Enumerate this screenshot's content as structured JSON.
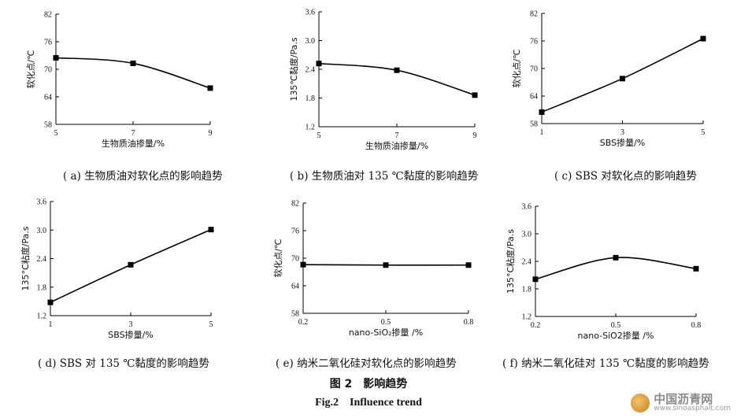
{
  "figure": {
    "title_cn": "图 2　影响趋势",
    "title_en": "Fig.2　Influence trend"
  },
  "watermark": {
    "name": "中国沥青网",
    "url": "www.sinoasphalt.com"
  },
  "chart_data": [
    {
      "type": "line",
      "caption": "( a) 生物质油对软化点的影响趋势",
      "xlabel": "生物质油掺量/%",
      "ylabel": "软化点/℃",
      "xlim": [
        5,
        9
      ],
      "ylim": [
        58,
        82
      ],
      "xticks": [
        "5",
        "7",
        "9"
      ],
      "yticks": [
        "58",
        "64",
        "70",
        "76",
        "82"
      ],
      "x": [
        5,
        7,
        9
      ],
      "values": [
        72.5,
        71.3,
        65.9
      ]
    },
    {
      "type": "line",
      "caption": "( b) 生物质油对 135 ℃黏度的影响趋势",
      "xlabel": "生物质油掺量/%",
      "ylabel": "135℃黏度/Pa.s",
      "xlim": [
        5,
        9
      ],
      "ylim": [
        1.2,
        3.6
      ],
      "xticks": [
        "5",
        "7",
        "9"
      ],
      "yticks": [
        "1.2",
        "1.8",
        "2.4",
        "3.0",
        "3.6"
      ],
      "x": [
        5,
        7,
        9
      ],
      "values": [
        2.52,
        2.38,
        1.86
      ]
    },
    {
      "type": "line",
      "caption": "( c) SBS 对软化点的影响趋势",
      "xlabel": "SBS掺量/%",
      "ylabel": "软化点/℃",
      "xlim": [
        1,
        5
      ],
      "ylim": [
        58,
        82
      ],
      "xticks": [
        "1",
        "3",
        "5"
      ],
      "yticks": [
        "58",
        "64",
        "70",
        "76",
        "82"
      ],
      "x": [
        1,
        3,
        5
      ],
      "values": [
        60.5,
        67.8,
        76.5
      ]
    },
    {
      "type": "line",
      "caption": "( d) SBS 对 135 ℃黏度的影响趋势",
      "xlabel": "SBS掺量/%",
      "ylabel": "135°C粘度/Pa.s",
      "xlim": [
        1,
        5
      ],
      "ylim": [
        1.2,
        3.6
      ],
      "xticks": [
        "1",
        "3",
        "5"
      ],
      "yticks": [
        "1.2",
        "1.8",
        "2.4",
        "3.0",
        "3.6"
      ],
      "x": [
        1,
        3,
        5
      ],
      "values": [
        1.48,
        2.27,
        3.01
      ]
    },
    {
      "type": "line",
      "caption": "( e) 纳米二氧化硅对软化点的影响趋势",
      "xlabel": "nano-SiO₂掺量 /%",
      "ylabel": "软化点/℃",
      "xlim": [
        0.2,
        0.8
      ],
      "ylim": [
        58,
        82
      ],
      "xticks": [
        "0.2",
        "0.5",
        "0.8"
      ],
      "yticks": [
        "58",
        "64",
        "70",
        "76",
        "82"
      ],
      "x": [
        0.2,
        0.5,
        0.8
      ],
      "values": [
        68.6,
        68.5,
        68.5
      ]
    },
    {
      "type": "line",
      "caption": "( f) 纳米二氧化硅对 135 ℃黏度的影响趋势",
      "xlabel": "nano-SiO2掺量 /%",
      "ylabel": "135°C粘度/Pa.s",
      "xlim": [
        0.2,
        0.8
      ],
      "ylim": [
        1.2,
        3.6
      ],
      "xticks": [
        "0.2",
        "0.5",
        "0.8"
      ],
      "yticks": [
        "1.2",
        "1.8",
        "2.4",
        "3.0",
        "3.6"
      ],
      "x": [
        0.2,
        0.5,
        0.8
      ],
      "values": [
        2.01,
        2.48,
        2.24
      ]
    }
  ]
}
